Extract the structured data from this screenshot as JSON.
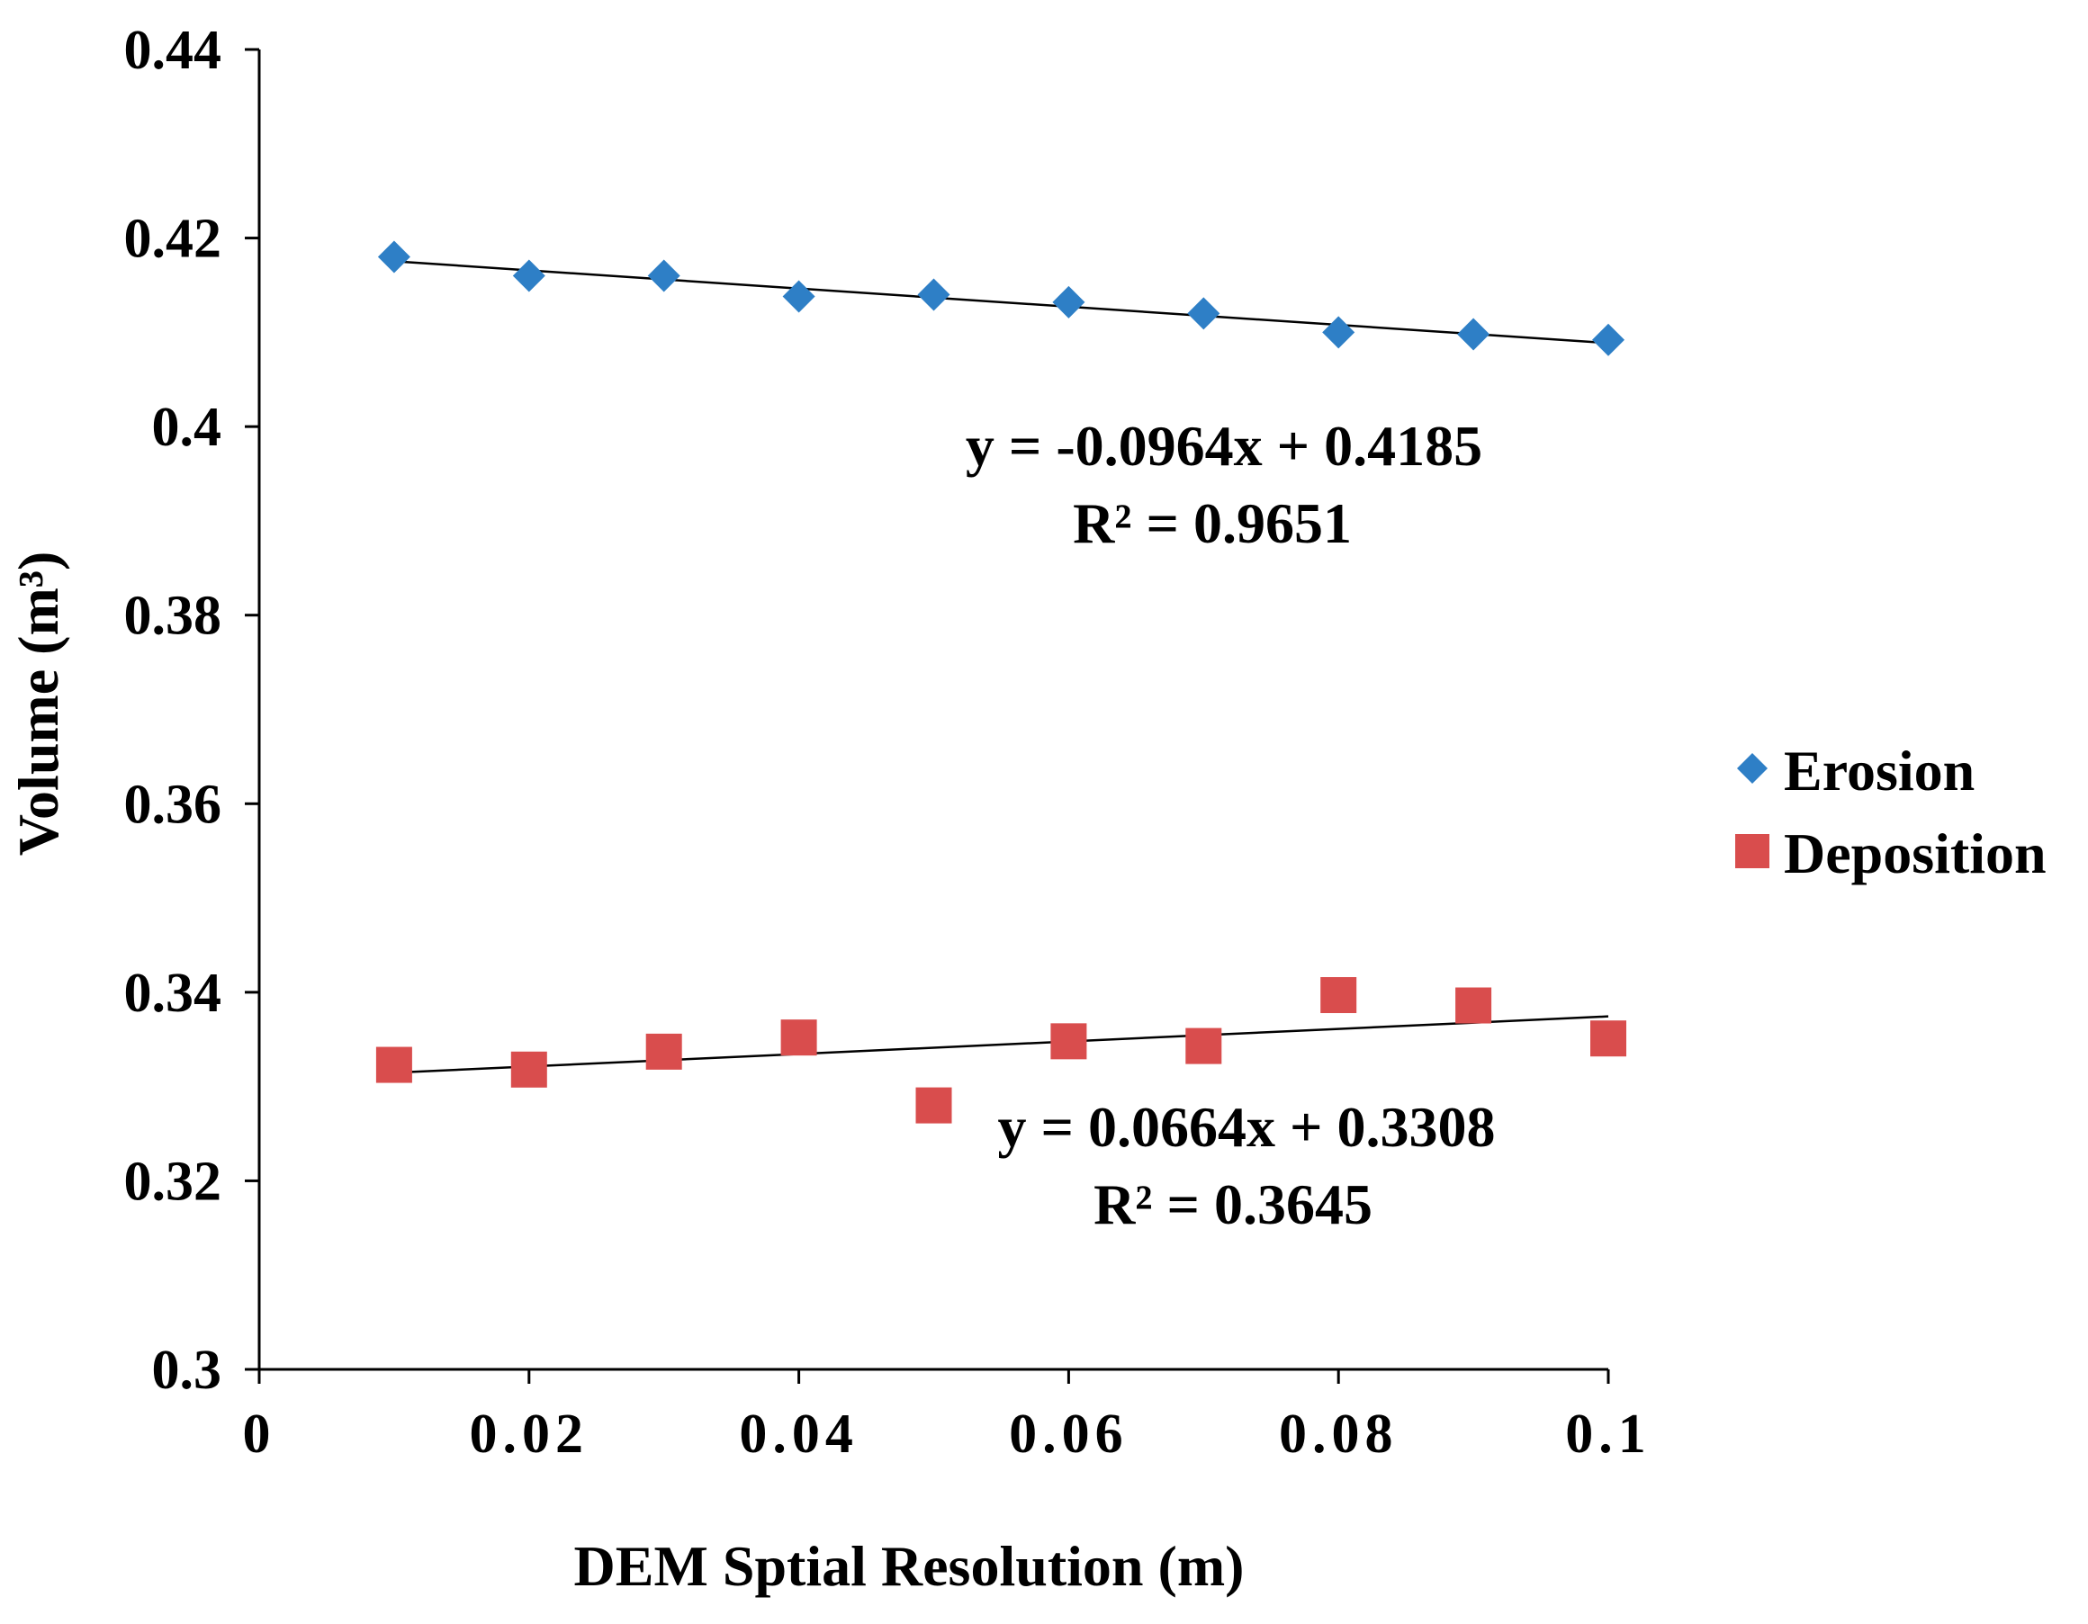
{
  "chart_data": {
    "type": "scatter",
    "title": "",
    "xlabel": "DEM Sptial Resolution (m)",
    "ylabel": "Volume (m³)",
    "xlim": [
      0,
      0.1
    ],
    "ylim": [
      0.3,
      0.44
    ],
    "xticks": [
      {
        "value": 0,
        "label": "0"
      },
      {
        "value": 0.02,
        "label": "0.02"
      },
      {
        "value": 0.04,
        "label": "0.04"
      },
      {
        "value": 0.06,
        "label": "0.06"
      },
      {
        "value": 0.08,
        "label": "0.08"
      },
      {
        "value": 0.1,
        "label": "0.1"
      }
    ],
    "yticks": [
      {
        "value": 0.3,
        "label": "0.3"
      },
      {
        "value": 0.32,
        "label": "0.32"
      },
      {
        "value": 0.34,
        "label": "0.34"
      },
      {
        "value": 0.36,
        "label": "0.36"
      },
      {
        "value": 0.38,
        "label": "0.38"
      },
      {
        "value": 0.4,
        "label": "0.4"
      },
      {
        "value": 0.42,
        "label": "0.42"
      },
      {
        "value": 0.44,
        "label": "0.44"
      }
    ],
    "grid": false,
    "legend_position": "right",
    "series": [
      {
        "name": "Erosion",
        "marker": "diamond",
        "color": "#2E7FC6",
        "x": [
          0.01,
          0.02,
          0.03,
          0.04,
          0.05,
          0.06,
          0.07,
          0.08,
          0.09,
          0.1
        ],
        "y": [
          0.418,
          0.416,
          0.416,
          0.4138,
          0.414,
          0.4132,
          0.412,
          0.41,
          0.4098,
          0.4092
        ],
        "trendline": {
          "slope": -0.0964,
          "intercept": 0.4185,
          "x_range": [
            0.01,
            0.1
          ]
        },
        "equation": "y = -0.0964x + 0.4185",
        "r_squared": "R² = 0.9651"
      },
      {
        "name": "Deposition",
        "marker": "square",
        "color": "#D94D4D",
        "x": [
          0.01,
          0.02,
          0.03,
          0.04,
          0.05,
          0.06,
          0.07,
          0.08,
          0.09,
          0.1
        ],
        "y": [
          0.3323,
          0.3318,
          0.3337,
          0.3352,
          0.328,
          0.3348,
          0.3343,
          0.3397,
          0.3386,
          0.3351
        ],
        "trendline": {
          "slope": 0.0664,
          "intercept": 0.3308,
          "x_range": [
            0.01,
            0.1
          ]
        },
        "equation": "y = 0.0664x + 0.3308",
        "r_squared": "R² = 0.3645"
      }
    ]
  }
}
